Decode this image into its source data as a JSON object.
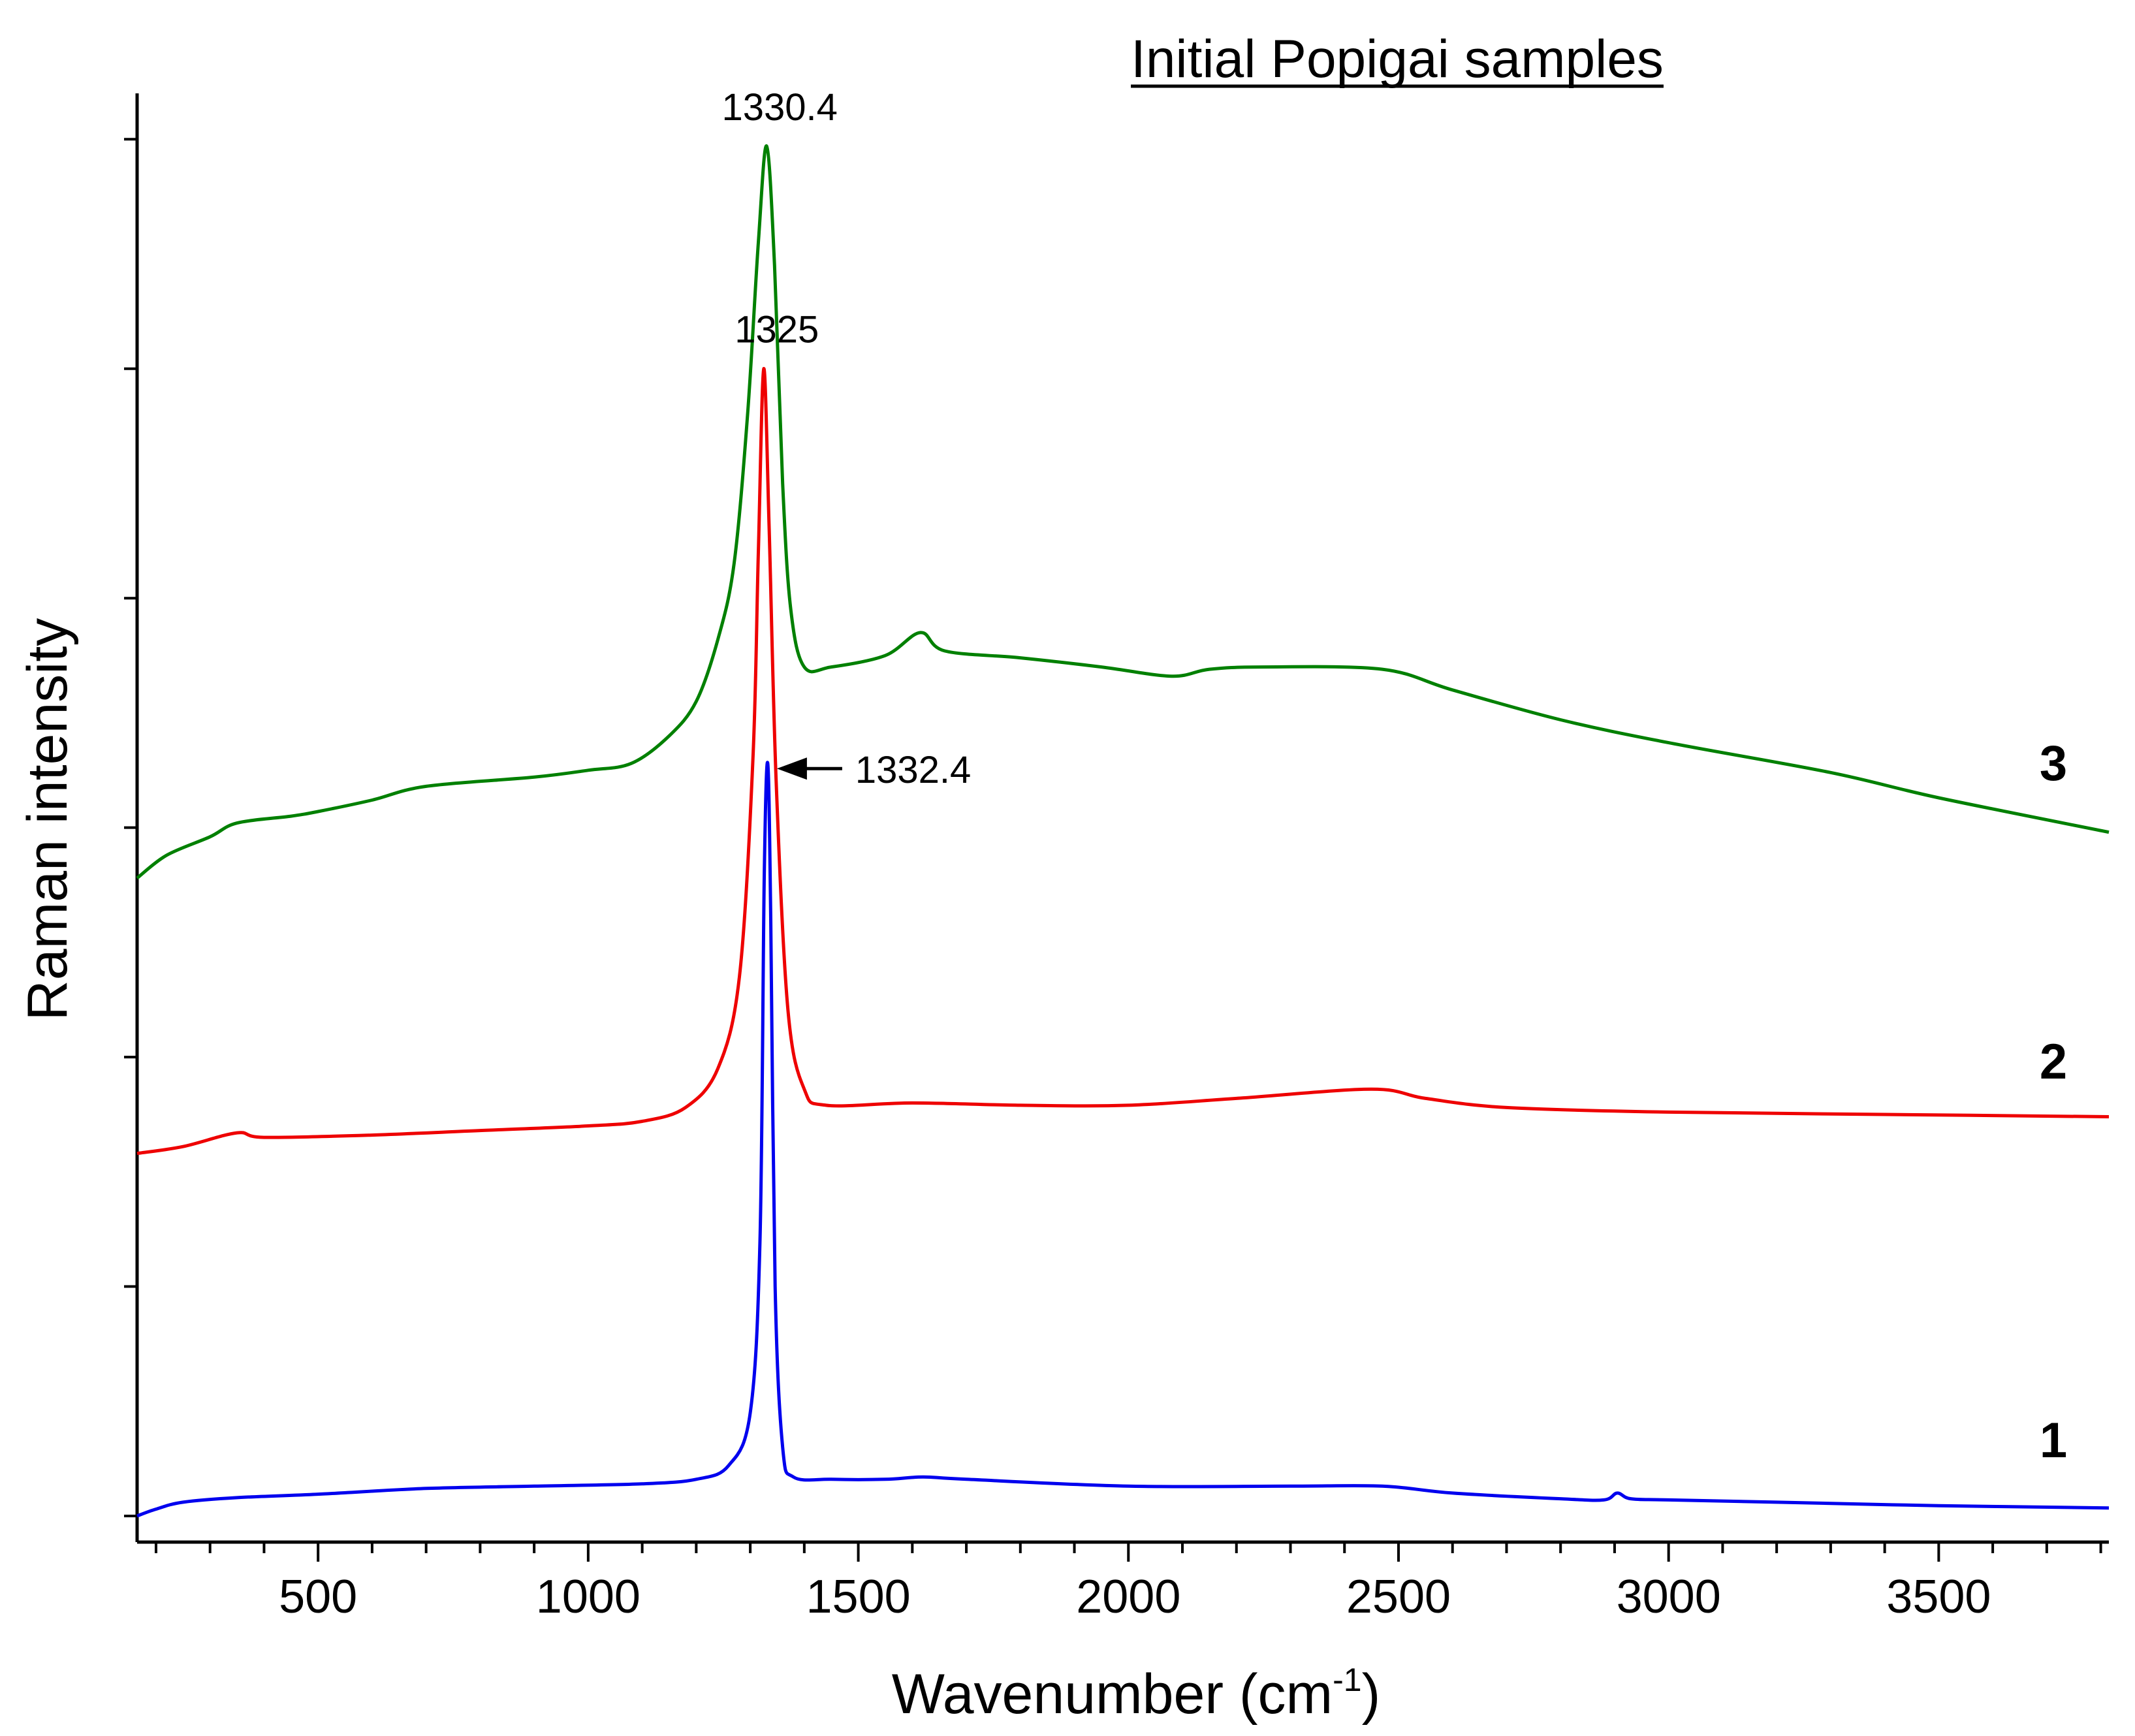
{
  "chart_data": {
    "type": "line",
    "title": "Initial Popigai samples",
    "xlabel": "Wavenumber (cm",
    "xlabel_superscript": "-1",
    "xlabel_close": ")",
    "ylabel": "Raman intensity",
    "xlim": [
      165,
      3815
    ],
    "ylim": [
      0,
      6.2
    ],
    "x_ticks": [
      500,
      1000,
      1500,
      2000,
      2500,
      3000,
      3500
    ],
    "x_tick_labels": [
      "500",
      "1000",
      "1500",
      "2000",
      "2500",
      "3000",
      "3500"
    ],
    "x_minor_step": 100,
    "y_ticks": [
      0,
      1,
      2,
      3,
      4,
      5,
      6
    ],
    "grid": false,
    "legend": "none",
    "series": [
      {
        "name": "1",
        "color": "#0000ee",
        "label_y": 0.33,
        "points": [
          [
            165,
            0
          ],
          [
            200,
            0.03
          ],
          [
            250,
            0.06
          ],
          [
            350,
            0.08
          ],
          [
            500,
            0.095
          ],
          [
            700,
            0.12
          ],
          [
            900,
            0.13
          ],
          [
            1100,
            0.14
          ],
          [
            1200,
            0.16
          ],
          [
            1260,
            0.22
          ],
          [
            1300,
            0.45
          ],
          [
            1318,
            1.2
          ],
          [
            1326,
            2.8
          ],
          [
            1332.4,
            3.28
          ],
          [
            1338,
            2.6
          ],
          [
            1346,
            1.0
          ],
          [
            1360,
            0.3
          ],
          [
            1380,
            0.17
          ],
          [
            1450,
            0.16
          ],
          [
            1550,
            0.16
          ],
          [
            1620,
            0.17
          ],
          [
            1700,
            0.16
          ],
          [
            2000,
            0.13
          ],
          [
            2300,
            0.13
          ],
          [
            2470,
            0.13
          ],
          [
            2600,
            0.1
          ],
          [
            2800,
            0.075
          ],
          [
            2880,
            0.07
          ],
          [
            2905,
            0.1
          ],
          [
            2930,
            0.075
          ],
          [
            3000,
            0.07
          ],
          [
            3200,
            0.06
          ],
          [
            3500,
            0.045
          ],
          [
            3815,
            0.035
          ]
        ]
      },
      {
        "name": "2",
        "color": "#ee0000",
        "label_y": 1.98,
        "points": [
          [
            165,
            1.58
          ],
          [
            250,
            1.61
          ],
          [
            350,
            1.67
          ],
          [
            400,
            1.65
          ],
          [
            600,
            1.66
          ],
          [
            800,
            1.68
          ],
          [
            1000,
            1.7
          ],
          [
            1100,
            1.72
          ],
          [
            1180,
            1.78
          ],
          [
            1240,
            1.95
          ],
          [
            1280,
            2.35
          ],
          [
            1305,
            3.3
          ],
          [
            1315,
            4.2
          ],
          [
            1325,
            5.0
          ],
          [
            1335,
            4.3
          ],
          [
            1348,
            3.2
          ],
          [
            1370,
            2.2
          ],
          [
            1400,
            1.86
          ],
          [
            1440,
            1.79
          ],
          [
            1600,
            1.8
          ],
          [
            1800,
            1.79
          ],
          [
            2000,
            1.79
          ],
          [
            2200,
            1.82
          ],
          [
            2450,
            1.86
          ],
          [
            2550,
            1.82
          ],
          [
            2700,
            1.78
          ],
          [
            3000,
            1.76
          ],
          [
            3400,
            1.75
          ],
          [
            3815,
            1.74
          ]
        ]
      },
      {
        "name": "3",
        "color": "#008000",
        "label_y": 3.28,
        "points": [
          [
            165,
            2.78
          ],
          [
            220,
            2.88
          ],
          [
            300,
            2.96
          ],
          [
            350,
            3.02
          ],
          [
            450,
            3.05
          ],
          [
            500,
            3.07
          ],
          [
            600,
            3.12
          ],
          [
            700,
            3.18
          ],
          [
            900,
            3.22
          ],
          [
            1000,
            3.25
          ],
          [
            1080,
            3.28
          ],
          [
            1150,
            3.4
          ],
          [
            1200,
            3.55
          ],
          [
            1240,
            3.82
          ],
          [
            1270,
            4.15
          ],
          [
            1295,
            4.8
          ],
          [
            1315,
            5.55
          ],
          [
            1330.4,
            5.97
          ],
          [
            1345,
            5.45
          ],
          [
            1360,
            4.5
          ],
          [
            1375,
            3.95
          ],
          [
            1400,
            3.7
          ],
          [
            1450,
            3.7
          ],
          [
            1550,
            3.75
          ],
          [
            1615,
            3.85
          ],
          [
            1660,
            3.77
          ],
          [
            1800,
            3.74
          ],
          [
            1950,
            3.7
          ],
          [
            2080,
            3.66
          ],
          [
            2150,
            3.69
          ],
          [
            2250,
            3.7
          ],
          [
            2470,
            3.69
          ],
          [
            2600,
            3.6
          ],
          [
            2800,
            3.47
          ],
          [
            3000,
            3.37
          ],
          [
            3300,
            3.24
          ],
          [
            3500,
            3.13
          ],
          [
            3815,
            2.98
          ]
        ]
      }
    ],
    "annotations": [
      {
        "text": "1330.4",
        "x": 1330.4,
        "y": 5.97,
        "offset": "above"
      },
      {
        "text": "1325",
        "x": 1325,
        "y": 5.0,
        "offset": "above"
      },
      {
        "text": "1332.4",
        "x": 1332.4,
        "y": 3.28,
        "offset": "right-arrow"
      }
    ]
  }
}
